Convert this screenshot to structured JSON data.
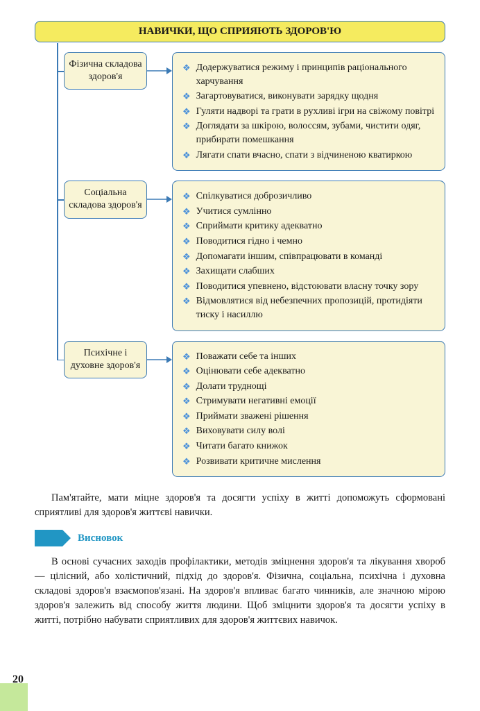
{
  "title": "НАВИЧКИ, ЩО СПРИЯЮТЬ ЗДОРОВ'Ю",
  "colors": {
    "title_bg": "#f5eb5f",
    "box_bg": "#f9f5d6",
    "border": "#3b7ab5",
    "bullet": "#4a90d9",
    "conclusion": "#2196c4",
    "page_green": "#c5e89b"
  },
  "sections": [
    {
      "category": "Фізична складова здоров'я",
      "items": [
        "Додержуватися режиму і принципів раціонального харчування",
        "Загартовуватися, виконувати зарядку щодня",
        "Гуляти надворі та грати в рухливі ігри на свіжому повітрі",
        "Доглядати за шкірою, волоссям, зубами, чистити одяг, прибирати помешкання",
        "Лягати спати вчасно, спати з відчиненою кватиркою"
      ]
    },
    {
      "category": "Соціальна складова здоров'я",
      "items": [
        "Спілкуватися доброзичливо",
        "Учитися сумлінно",
        "Сприймати критику адекватно",
        "Поводитися гідно і чемно",
        "Допомагати іншим, співпрацювати в команді",
        "Захищати слабших",
        "Поводитися упевнено, відстоювати власну точку зору",
        "Відмовлятися від небезпечних пропозицій, протидіяти тиску і насиллю"
      ]
    },
    {
      "category": "Психічне і духовне здоров'я",
      "items": [
        "Поважати себе та інших",
        "Оцінювати себе адекватно",
        "Долати труднощі",
        "Стримувати негативні емоції",
        "Приймати зважені рішення",
        "Виховувати силу волі",
        "Читати багато книжок",
        "Розвивати критичне мислення"
      ]
    }
  ],
  "paragraph1": "Пам'ятайте, мати міцне здоров'я та досягти успіху в житті допоможуть сформовані сприятливі для здоров'я життєві навички.",
  "conclusion_label": "Висновок",
  "paragraph2": "В основі сучасних заходів профілактики, методів зміцнення здоров'я та лікування хвороб — цілісний, або холістичний, підхід до здоров'я. Фізична, соціальна, психічна і духовна складові здоров'я взаємопов'язані. На здоров'я впливає багато чинників, але значною мірою здоров'я залежить від способу життя людини. Щоб зміцнити здоров'я та досягти успіху в житті, потрібно набувати сприятливих для здоров'я життєвих навичок.",
  "page_number": "20"
}
